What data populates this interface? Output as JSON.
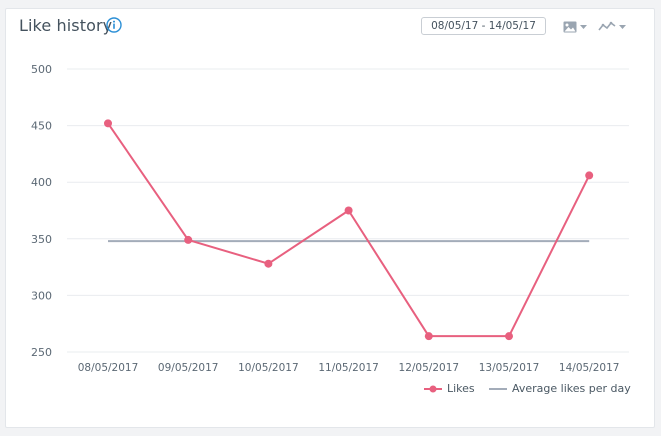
{
  "widget": {
    "title": "Like history",
    "date_range": "08/05/17 - 14/05/17",
    "icons": {
      "info": "info-icon",
      "image_export": "image-icon",
      "chart_type": "line-chart-icon"
    }
  },
  "colors": {
    "likes": "#e8607f",
    "average": "#a3acb9",
    "grid": "#e9ecef",
    "axis_text": "#5b6874",
    "accent": "#2b8fd6"
  },
  "chart_data": {
    "type": "line",
    "categories": [
      "08/05/2017",
      "09/05/2017",
      "10/05/2017",
      "11/05/2017",
      "12/05/2017",
      "13/05/2017",
      "14/05/2017"
    ],
    "series": [
      {
        "name": "Likes",
        "values": [
          452,
          349,
          328,
          375,
          264,
          264,
          406
        ]
      },
      {
        "name": "Average likes per day",
        "values": [
          348,
          348,
          348,
          348,
          348,
          348,
          348
        ]
      }
    ],
    "ylim": [
      250,
      500
    ],
    "yticks": [
      250,
      300,
      350,
      400,
      450,
      500
    ],
    "grid": true,
    "legend": "bottom-right"
  }
}
